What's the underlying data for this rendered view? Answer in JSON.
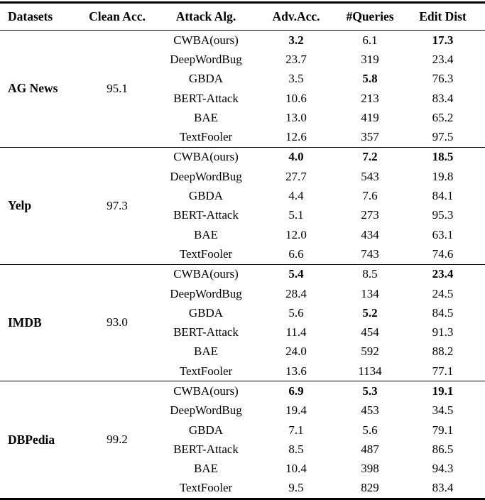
{
  "table": {
    "headers": [
      "Datasets",
      "Clean Acc.",
      "Attack Alg.",
      "Adv.Acc.",
      "#Queries",
      "Edit Dist"
    ],
    "groups": [
      {
        "dataset": "AG News",
        "clean_acc": "95.1",
        "rows": [
          {
            "alg": "CWBA(ours)",
            "adv": "3.2",
            "adv_b": true,
            "q": "6.1",
            "ed": "17.3",
            "ed_b": true
          },
          {
            "alg": "DeepWordBug",
            "adv": "23.7",
            "q": "319",
            "ed": "23.4"
          },
          {
            "alg": "GBDA",
            "adv": "3.5",
            "q": "5.8",
            "q_b": true,
            "ed": "76.3"
          },
          {
            "alg": "BERT-Attack",
            "adv": "10.6",
            "q": "213",
            "ed": "83.4"
          },
          {
            "alg": "BAE",
            "adv": "13.0",
            "q": "419",
            "ed": "65.2"
          },
          {
            "alg": "TextFooler",
            "adv": "12.6",
            "q": "357",
            "ed": "97.5"
          }
        ]
      },
      {
        "dataset": "Yelp",
        "clean_acc": "97.3",
        "rows": [
          {
            "alg": "CWBA(ours)",
            "adv": "4.0",
            "adv_b": true,
            "q": "7.2",
            "q_b": true,
            "ed": "18.5",
            "ed_b": true
          },
          {
            "alg": "DeepWordBug",
            "adv": "27.7",
            "q": "543",
            "ed": "19.8"
          },
          {
            "alg": "GBDA",
            "adv": "4.4",
            "q": "7.6",
            "ed": "84.1"
          },
          {
            "alg": "BERT-Attack",
            "adv": "5.1",
            "q": "273",
            "ed": "95.3"
          },
          {
            "alg": "BAE",
            "adv": "12.0",
            "q": "434",
            "ed": "63.1"
          },
          {
            "alg": "TextFooler",
            "adv": "6.6",
            "q": "743",
            "ed": "74.6"
          }
        ]
      },
      {
        "dataset": "IMDB",
        "clean_acc": "93.0",
        "rows": [
          {
            "alg": "CWBA(ours)",
            "adv": "5.4",
            "adv_b": true,
            "q": "8.5",
            "ed": "23.4",
            "ed_b": true
          },
          {
            "alg": "DeepWordBug",
            "adv": "28.4",
            "q": "134",
            "ed": "24.5"
          },
          {
            "alg": "GBDA",
            "adv": "5.6",
            "q": "5.2",
            "q_b": true,
            "ed": "84.5"
          },
          {
            "alg": "BERT-Attack",
            "adv": "11.4",
            "q": "454",
            "ed": "91.3"
          },
          {
            "alg": "BAE",
            "adv": "24.0",
            "q": "592",
            "ed": "88.2"
          },
          {
            "alg": "TextFooler",
            "adv": "13.6",
            "q": "1134",
            "ed": "77.1"
          }
        ]
      },
      {
        "dataset": "DBPedia",
        "clean_acc": "99.2",
        "rows": [
          {
            "alg": "CWBA(ours)",
            "adv": "6.9",
            "adv_b": true,
            "q": "5.3",
            "q_b": true,
            "ed": "19.1",
            "ed_b": true
          },
          {
            "alg": "DeepWordBug",
            "adv": "19.4",
            "q": "453",
            "ed": "34.5"
          },
          {
            "alg": "GBDA",
            "adv": "7.1",
            "q": "5.6",
            "ed": "79.1"
          },
          {
            "alg": "BERT-Attack",
            "adv": "8.5",
            "q": "487",
            "ed": "86.5"
          },
          {
            "alg": "BAE",
            "adv": "10.4",
            "q": "398",
            "ed": "94.3"
          },
          {
            "alg": "TextFooler",
            "adv": "9.5",
            "q": "829",
            "ed": "83.4"
          }
        ]
      }
    ]
  }
}
